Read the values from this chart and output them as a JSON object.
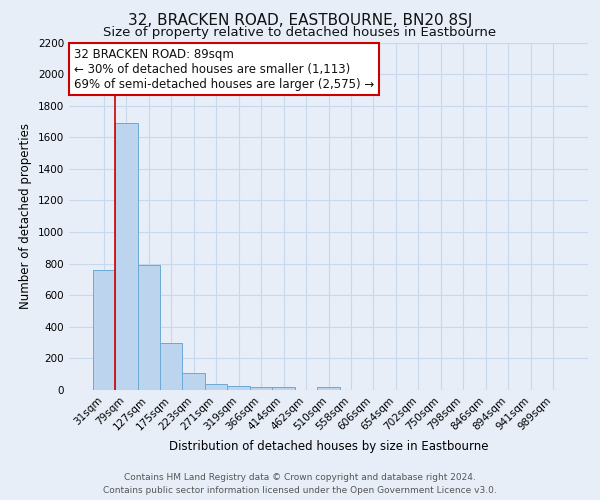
{
  "title": "32, BRACKEN ROAD, EASTBOURNE, BN20 8SJ",
  "subtitle": "Size of property relative to detached houses in Eastbourne",
  "xlabel": "Distribution of detached houses by size in Eastbourne",
  "ylabel": "Number of detached properties",
  "footer_line1": "Contains HM Land Registry data © Crown copyright and database right 2024.",
  "footer_line2": "Contains public sector information licensed under the Open Government Licence v3.0.",
  "categories": [
    "31sqm",
    "79sqm",
    "127sqm",
    "175sqm",
    "223sqm",
    "271sqm",
    "319sqm",
    "366sqm",
    "414sqm",
    "462sqm",
    "510sqm",
    "558sqm",
    "606sqm",
    "654sqm",
    "702sqm",
    "750sqm",
    "798sqm",
    "846sqm",
    "894sqm",
    "941sqm",
    "989sqm"
  ],
  "values": [
    760,
    1690,
    790,
    300,
    110,
    40,
    28,
    22,
    18,
    0,
    22,
    0,
    0,
    0,
    0,
    0,
    0,
    0,
    0,
    0,
    0
  ],
  "bar_color": "#bcd4ee",
  "bar_edge_color": "#6aaad4",
  "grid_color": "#c8d8ec",
  "background_color": "#e8eef8",
  "plot_background": "#e8eef8",
  "ylim": [
    0,
    2200
  ],
  "yticks": [
    0,
    200,
    400,
    600,
    800,
    1000,
    1200,
    1400,
    1600,
    1800,
    2000,
    2200
  ],
  "red_line_x": 0.5,
  "annotation_title": "32 BRACKEN ROAD: 89sqm",
  "annotation_line1": "← 30% of detached houses are smaller (1,113)",
  "annotation_line2": "69% of semi-detached houses are larger (2,575) →",
  "annotation_box_color": "#ffffff",
  "annotation_border_color": "#cc0000",
  "title_fontsize": 11,
  "subtitle_fontsize": 9.5,
  "xlabel_fontsize": 8.5,
  "ylabel_fontsize": 8.5,
  "tick_fontsize": 7.5,
  "annotation_fontsize": 8.5,
  "footer_fontsize": 6.5
}
